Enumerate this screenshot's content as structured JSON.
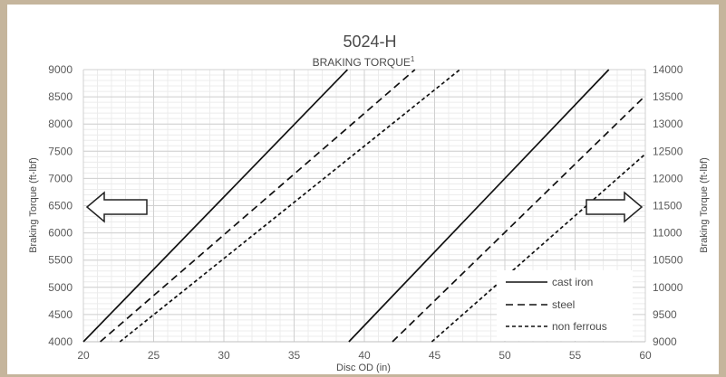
{
  "chart_data": {
    "type": "line",
    "title": "5024-H",
    "subtitle": "BRAKING TORQUE",
    "subtitle_superscript": "1",
    "xlabel": "Disc OD (in)",
    "ylabel_left": "Braking Torque (ft-lbf)",
    "ylabel_right": "Braking Torque (ft-lbf)",
    "xlim": [
      20,
      60
    ],
    "ylim_left": [
      4000,
      9000
    ],
    "ylim_right": [
      9000,
      14000
    ],
    "x_ticks": [
      "20",
      "25",
      "30",
      "35",
      "40",
      "45",
      "50",
      "55",
      "60"
    ],
    "y_left_ticks": [
      "4000",
      "4500",
      "5000",
      "5500",
      "6000",
      "6500",
      "7000",
      "7500",
      "8000",
      "8500",
      "9000"
    ],
    "y_right_ticks": [
      "9000",
      "9500",
      "10000",
      "10500",
      "11000",
      "11500",
      "12000",
      "12500",
      "13000",
      "13500",
      "14000"
    ],
    "grid": true,
    "legend_position": "bottom-right",
    "series": [
      {
        "name": "cast iron",
        "style": "solid",
        "axis": "left",
        "x": [
          20,
          38.8
        ],
        "y": [
          4000,
          9000
        ]
      },
      {
        "name": "steel",
        "style": "dashed",
        "axis": "left",
        "x": [
          21.2,
          43.6
        ],
        "y": [
          4000,
          9000
        ]
      },
      {
        "name": "non ferrous",
        "style": "dotted",
        "axis": "left",
        "x": [
          22.6,
          46.8
        ],
        "y": [
          4000,
          9000
        ]
      },
      {
        "name": "cast iron",
        "style": "solid",
        "axis": "right",
        "x": [
          38.9,
          57.4
        ],
        "y": [
          9000,
          14000
        ]
      },
      {
        "name": "steel",
        "style": "dashed",
        "axis": "right",
        "x": [
          42.0,
          60
        ],
        "y": [
          9000,
          13520
        ]
      },
      {
        "name": "non ferrous",
        "style": "dotted",
        "axis": "right",
        "x": [
          44.8,
          60
        ],
        "y": [
          9000,
          12450
        ]
      }
    ],
    "annotations": [
      {
        "type": "arrow",
        "direction": "left",
        "points_to": "left axis"
      },
      {
        "type": "arrow",
        "direction": "right",
        "points_to": "right axis"
      }
    ]
  }
}
